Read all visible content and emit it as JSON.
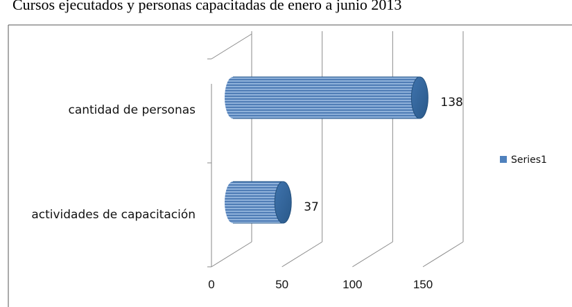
{
  "chart_data": {
    "type": "bar",
    "orientation": "horizontal",
    "style": "3d-cylinder",
    "title": "Cursos ejecutados y personas capacitadas de enero a junio 2013",
    "categories": [
      "actividades de capacitación",
      "cantidad de personas"
    ],
    "series": [
      {
        "name": "Series1",
        "values": [
          37,
          138
        ]
      }
    ],
    "xlim": [
      0,
      150
    ],
    "xticks": [
      0,
      50,
      100,
      150
    ],
    "grid": true,
    "legend": "right",
    "bar_color": "#4f81bd",
    "bar_color_dark": "#2c5d8f"
  }
}
